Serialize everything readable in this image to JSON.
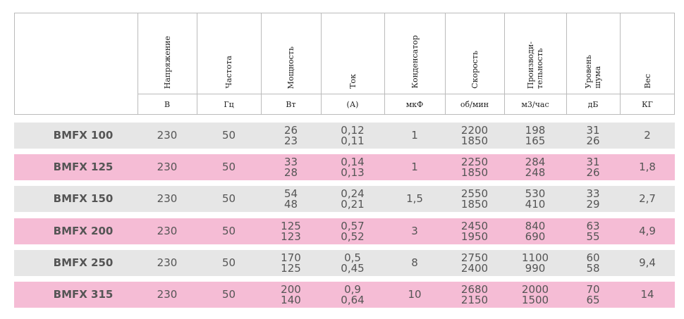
{
  "header": {
    "columns": [
      {
        "title": [
          "Напряжение"
        ],
        "unit": "В"
      },
      {
        "title": [
          "Частота"
        ],
        "unit": "Гц"
      },
      {
        "title": [
          "Мощность"
        ],
        "unit": "Вт"
      },
      {
        "title": [
          "Ток"
        ],
        "unit": "(А)"
      },
      {
        "title": [
          "Конденсатор"
        ],
        "unit": "мкФ"
      },
      {
        "title": [
          "Скорость"
        ],
        "unit": "об/мин"
      },
      {
        "title": [
          "Производи-",
          "тельность"
        ],
        "unit": "м3/час"
      },
      {
        "title": [
          "Уровень",
          "шума"
        ],
        "unit": "дБ"
      },
      {
        "title": [
          "Вес"
        ],
        "unit": "КГ"
      }
    ]
  },
  "rows": [
    {
      "model": "BMFX 100",
      "values": [
        [
          "230"
        ],
        [
          "50"
        ],
        [
          "26",
          "23"
        ],
        [
          "0,12",
          "0,11"
        ],
        [
          "1"
        ],
        [
          "2200",
          "1850"
        ],
        [
          "198",
          "165"
        ],
        [
          "31",
          "26"
        ],
        [
          "2"
        ]
      ]
    },
    {
      "model": "BMFX 125",
      "values": [
        [
          "230"
        ],
        [
          "50"
        ],
        [
          "33",
          "28"
        ],
        [
          "0,14",
          "0,13"
        ],
        [
          "1"
        ],
        [
          "2250",
          "1850"
        ],
        [
          "284",
          "248"
        ],
        [
          "31",
          "26"
        ],
        [
          "1,8"
        ]
      ]
    },
    {
      "model": "BMFX 150",
      "values": [
        [
          "230"
        ],
        [
          "50"
        ],
        [
          "54",
          "48"
        ],
        [
          "0,24",
          "0,21"
        ],
        [
          "1,5"
        ],
        [
          "2550",
          "1850"
        ],
        [
          "530",
          "410"
        ],
        [
          "33",
          "29"
        ],
        [
          "2,7"
        ]
      ]
    },
    {
      "model": "BMFX 200",
      "values": [
        [
          "230"
        ],
        [
          "50"
        ],
        [
          "125",
          "123"
        ],
        [
          "0,57",
          "0,52"
        ],
        [
          "3"
        ],
        [
          "2450",
          "1950"
        ],
        [
          "840",
          "690"
        ],
        [
          "63",
          "55"
        ],
        [
          "4,9"
        ]
      ]
    },
    {
      "model": "BMFX 250",
      "values": [
        [
          "230"
        ],
        [
          "50"
        ],
        [
          "170",
          "125"
        ],
        [
          "0,5",
          "0,45"
        ],
        [
          "8"
        ],
        [
          "2750",
          "2400"
        ],
        [
          "1100",
          "990"
        ],
        [
          "60",
          "58"
        ],
        [
          "9,4"
        ]
      ]
    },
    {
      "model": "BMFX 315",
      "values": [
        [
          "230"
        ],
        [
          "50"
        ],
        [
          "200",
          "140"
        ],
        [
          "0,9",
          "0,64"
        ],
        [
          "10"
        ],
        [
          "2680",
          "2150"
        ],
        [
          "2000",
          "1500"
        ],
        [
          "70",
          "65"
        ],
        [
          "14"
        ]
      ]
    }
  ]
}
